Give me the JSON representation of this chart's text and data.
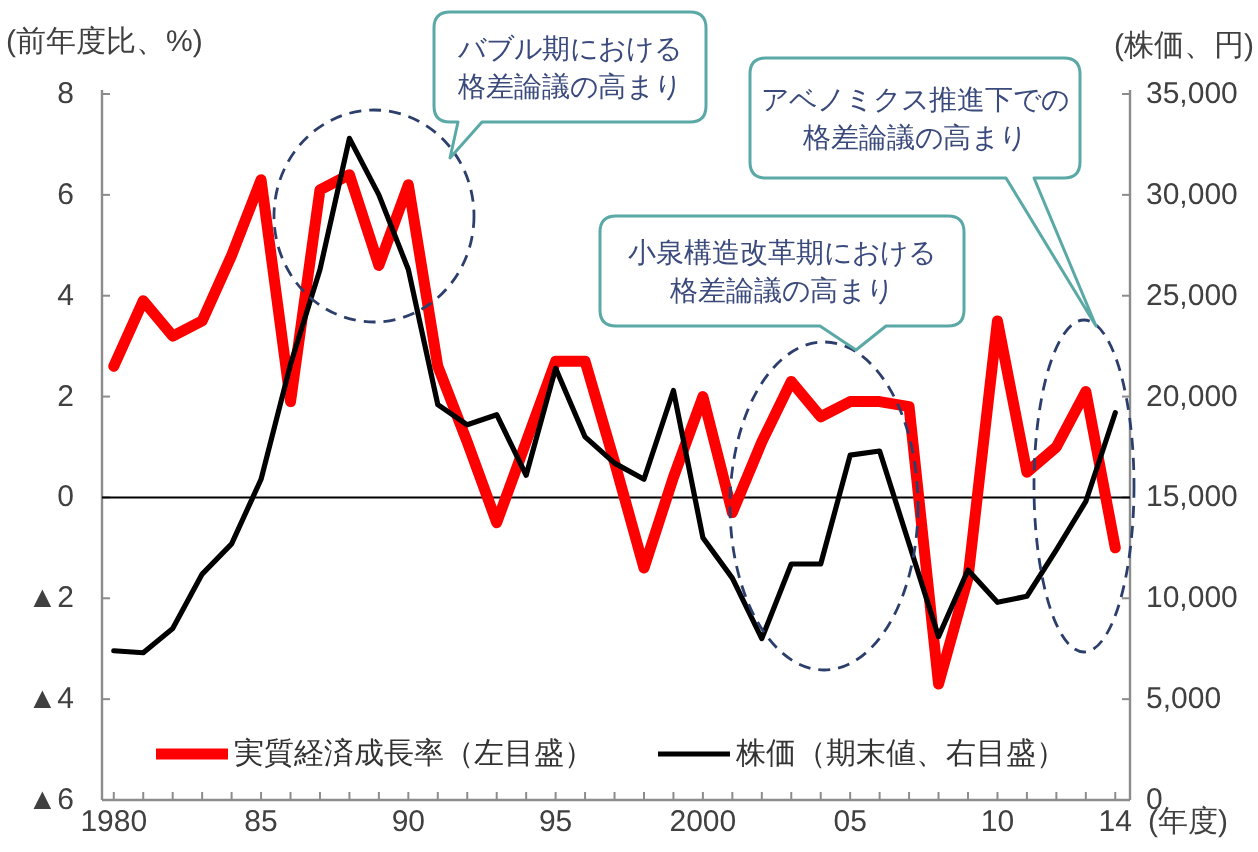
{
  "chart_data": {
    "type": "line",
    "x": [
      1980,
      1981,
      1982,
      1983,
      1984,
      1985,
      1986,
      1987,
      1988,
      1989,
      1990,
      1991,
      1992,
      1993,
      1994,
      1995,
      1996,
      1997,
      1998,
      1999,
      2000,
      2001,
      2002,
      2003,
      2004,
      2005,
      2006,
      2007,
      2008,
      2009,
      2010,
      2011,
      2012,
      2013,
      2014
    ],
    "series": [
      {
        "name": "実質経済成長率（左目盛）",
        "color": "#ff0000",
        "values": [
          2.6,
          3.9,
          3.2,
          3.5,
          4.8,
          6.3,
          1.9,
          6.1,
          6.4,
          4.6,
          6.2,
          2.6,
          1.1,
          -0.5,
          1.1,
          2.7,
          2.7,
          0.7,
          -1.4,
          0.4,
          2.0,
          -0.3,
          1.1,
          2.3,
          1.6,
          1.9,
          1.9,
          1.8,
          -3.7,
          -1.6,
          3.5,
          0.5,
          1.0,
          2.1,
          -1.0
        ]
      },
      {
        "name": "株価（期末値、右目盛）",
        "color": "#000000",
        "axis": "y2",
        "values": [
          7400,
          7300,
          8500,
          11200,
          12700,
          15900,
          21600,
          26300,
          32800,
          30000,
          26300,
          19600,
          18600,
          19100,
          16100,
          21400,
          18000,
          16700,
          15900,
          20300,
          13000,
          11000,
          8000,
          11700,
          11700,
          17100,
          17300,
          12700,
          8100,
          11400,
          9800,
          10100,
          12400,
          14800,
          19200
        ]
      }
    ],
    "ylabel": "(前年度比、%)",
    "y2label": "(株価、円)",
    "xlabel": "(年度)",
    "xlim": [
      1979.6,
      2014.5
    ],
    "xticks": [
      1980,
      {
        "value": 1981,
        "label": null
      },
      {
        "value": 1982,
        "label": null
      },
      {
        "value": 1983,
        "label": null
      },
      {
        "value": 1984,
        "label": null
      },
      {
        "value": 1985,
        "label": "85"
      },
      {
        "value": 1986,
        "label": null
      },
      {
        "value": 1987,
        "label": null
      },
      {
        "value": 1988,
        "label": null
      },
      {
        "value": 1989,
        "label": null
      },
      {
        "value": 1990,
        "label": "90"
      },
      {
        "value": 1991,
        "label": null
      },
      {
        "value": 1992,
        "label": null
      },
      {
        "value": 1993,
        "label": null
      },
      {
        "value": 1994,
        "label": null
      },
      {
        "value": 1995,
        "label": "95"
      },
      {
        "value": 1996,
        "label": null
      },
      {
        "value": 1997,
        "label": null
      },
      {
        "value": 1998,
        "label": null
      },
      {
        "value": 1999,
        "label": null
      },
      2000,
      {
        "value": 2001,
        "label": null
      },
      {
        "value": 2002,
        "label": null
      },
      {
        "value": 2003,
        "label": null
      },
      {
        "value": 2004,
        "label": null
      },
      {
        "value": 2005,
        "label": "05"
      },
      {
        "value": 2006,
        "label": null
      },
      {
        "value": 2007,
        "label": null
      },
      {
        "value": 2008,
        "label": null
      },
      {
        "value": 2009,
        "label": null
      },
      {
        "value": 2010,
        "label": "10"
      },
      {
        "value": 2011,
        "label": null
      },
      {
        "value": 2012,
        "label": null
      },
      {
        "value": 2013,
        "label": null
      },
      {
        "value": 2014,
        "label": "14"
      }
    ],
    "ylim": [
      -6,
      8
    ],
    "yticks": [
      {
        "value": -6,
        "label": "▲6"
      },
      {
        "value": -4,
        "label": "▲4"
      },
      {
        "value": -2,
        "label": "▲2"
      },
      0,
      2,
      4,
      6,
      8
    ],
    "y2lim": [
      0,
      35000
    ],
    "y2ticks": [
      0,
      {
        "value": 5000,
        "label": "5,000"
      },
      {
        "value": 10000,
        "label": "10,000"
      },
      {
        "value": 15000,
        "label": "15,000"
      },
      {
        "value": 20000,
        "label": "20,000"
      },
      {
        "value": 25000,
        "label": "25,000"
      },
      {
        "value": 30000,
        "label": "30,000"
      },
      {
        "value": 35000,
        "label": "35,000"
      }
    ],
    "ref_lines": [
      {
        "axis": "y",
        "value": 0,
        "color": "#000000"
      }
    ],
    "annotations": [
      "バブル期における格差論議の高まり",
      "小泉構造改革期における格差論議の高まり",
      "アベノミクス推進下での格差論議の高まり"
    ],
    "legend": "bottom"
  }
}
